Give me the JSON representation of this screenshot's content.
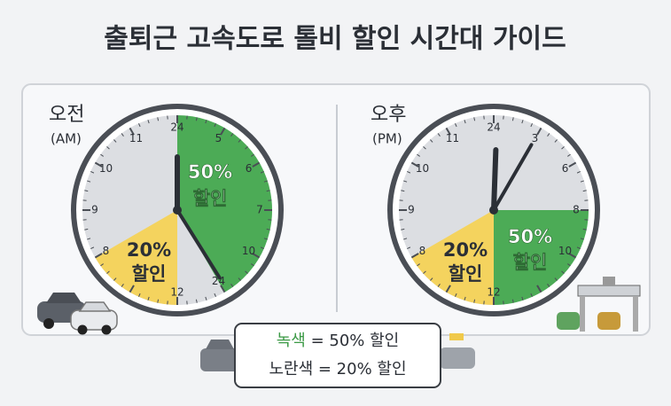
{
  "title": "출퇴근 고속도로 톨비 할인 시간대 가이드",
  "clocks": [
    {
      "label": "오전",
      "sublabel": "(AM)",
      "numbers": [
        "24",
        "5",
        "6",
        "7",
        "10",
        "24",
        "12",
        "8",
        "9",
        "10",
        "11"
      ],
      "green_label": [
        "50%",
        "할인"
      ],
      "yellow_label": [
        "20%",
        "할인"
      ]
    },
    {
      "label": "오후",
      "sublabel": "(PM)",
      "numbers": [
        "24",
        "3",
        "6",
        "8",
        "10",
        "12",
        "8",
        "9",
        "10",
        "11"
      ],
      "green_label": [
        "50%",
        "할인"
      ],
      "yellow_label": [
        "20%",
        "할인"
      ]
    }
  ],
  "legend": [
    {
      "color_name": "녹색",
      "text": "= 50% 할인"
    },
    {
      "color_name": "노란색",
      "text": "= 20% 할인"
    }
  ]
}
